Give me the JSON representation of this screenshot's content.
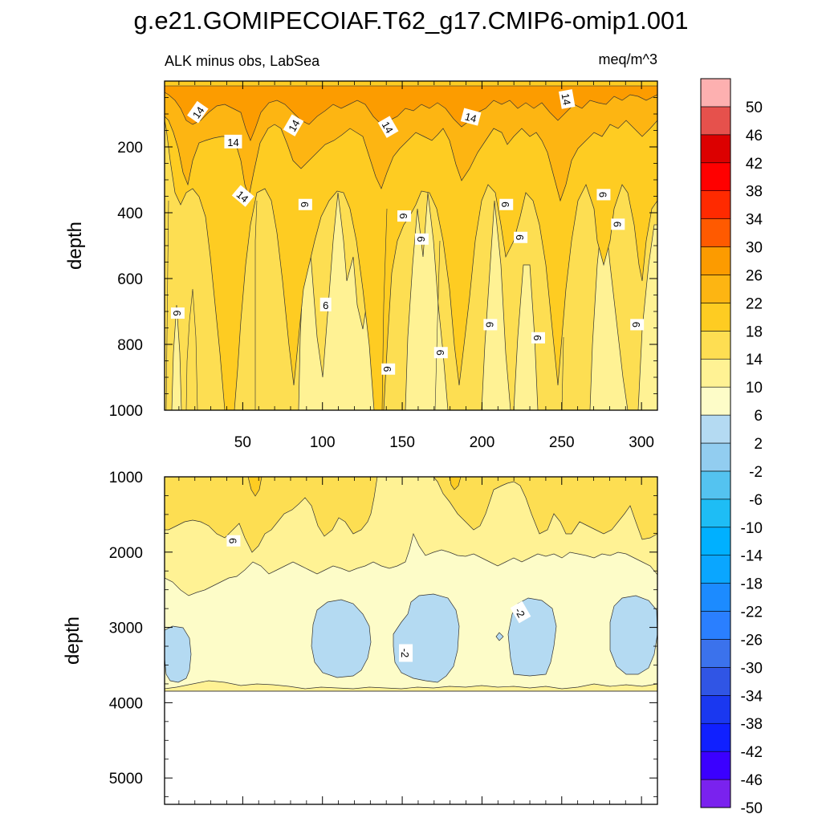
{
  "chart_data": {
    "type": "heatmap",
    "title": "g.e21.GOMIPECOIAF.T62_g17.CMIP6-omip1.001",
    "subtitle_left": "ALK minus obs, LabSea",
    "subtitle_right": "meq/m^3",
    "ylabel": "depth",
    "xlim": [
      1,
      310
    ],
    "xticks": [
      50,
      100,
      150,
      200,
      250,
      300
    ],
    "panels": [
      {
        "name": "upper",
        "ylim": [
          0,
          1000
        ],
        "yticks": [
          200,
          400,
          600,
          800,
          1000
        ],
        "contour_labels": [
          {
            "text": "14",
            "x": 22,
            "y": 95,
            "rot": -55
          },
          {
            "text": "14",
            "x": 44,
            "y": 185,
            "rot": 0
          },
          {
            "text": "14",
            "x": 50,
            "y": 350,
            "rot": 40
          },
          {
            "text": "14",
            "x": 82,
            "y": 135,
            "rot": -60
          },
          {
            "text": "14",
            "x": 141,
            "y": 140,
            "rot": 60
          },
          {
            "text": "14",
            "x": 193,
            "y": 110,
            "rot": 15
          },
          {
            "text": "14",
            "x": 253,
            "y": 55,
            "rot": 80
          },
          {
            "text": "6",
            "x": 89,
            "y": 375,
            "rot": 90
          },
          {
            "text": "6",
            "x": 102,
            "y": 680,
            "rot": 0
          },
          {
            "text": "6",
            "x": 151,
            "y": 410,
            "rot": 90
          },
          {
            "text": "6",
            "x": 162,
            "y": 480,
            "rot": 90
          },
          {
            "text": "6",
            "x": 215,
            "y": 375,
            "rot": 90
          },
          {
            "text": "6",
            "x": 224,
            "y": 475,
            "rot": 90
          },
          {
            "text": "6",
            "x": 276,
            "y": 345,
            "rot": 90
          },
          {
            "text": "6",
            "x": 285,
            "y": 435,
            "rot": 90
          },
          {
            "text": "6",
            "x": 9,
            "y": 705,
            "rot": 90
          },
          {
            "text": "6",
            "x": 205,
            "y": 740,
            "rot": 90
          },
          {
            "text": "6",
            "x": 235,
            "y": 780,
            "rot": 90
          },
          {
            "text": "6",
            "x": 297,
            "y": 740,
            "rot": 90
          },
          {
            "text": "6",
            "x": 174,
            "y": 825,
            "rot": 90
          },
          {
            "text": "6",
            "x": 141,
            "y": 875,
            "rot": 90
          }
        ]
      },
      {
        "name": "lower",
        "ylim": [
          1000,
          5350
        ],
        "yticks": [
          1000,
          2000,
          3000,
          4000,
          5000
        ],
        "bottom_depth": 3880,
        "contour_labels": [
          {
            "text": "6",
            "x": 44,
            "y": 1850,
            "rot": 90
          },
          {
            "text": "-2",
            "x": 152,
            "y": 3340,
            "rot": 90
          },
          {
            "text": "-2",
            "x": 224,
            "y": 2800,
            "rot": 60
          }
        ]
      }
    ],
    "colorbar": {
      "labels": [
        "50",
        "46",
        "42",
        "38",
        "34",
        "30",
        "26",
        "22",
        "18",
        "14",
        "10",
        "6",
        "2",
        "-2",
        "-6",
        "-10",
        "-14",
        "-18",
        "-22",
        "-26",
        "-30",
        "-34",
        "-38",
        "-42",
        "-46",
        "-50"
      ],
      "colors": [
        "#7a22ee",
        "#3b00ff",
        "#1020ff",
        "#1a38f0",
        "#3055e5",
        "#3b72ec",
        "#2a7fff",
        "#1c8bff",
        "#0aa6ff",
        "#00b0ff",
        "#1ebdf5",
        "#54c3f0",
        "#92cdf0",
        "#b4daf2",
        "#fdfcc8",
        "#fff294",
        "#fede52",
        "#fecc22",
        "#fdb512",
        "#fc9b00",
        "#ff5a00",
        "#ff2a00",
        "#ff0000",
        "#dc0000",
        "#e6514c",
        "#fdb0b0"
      ]
    }
  }
}
